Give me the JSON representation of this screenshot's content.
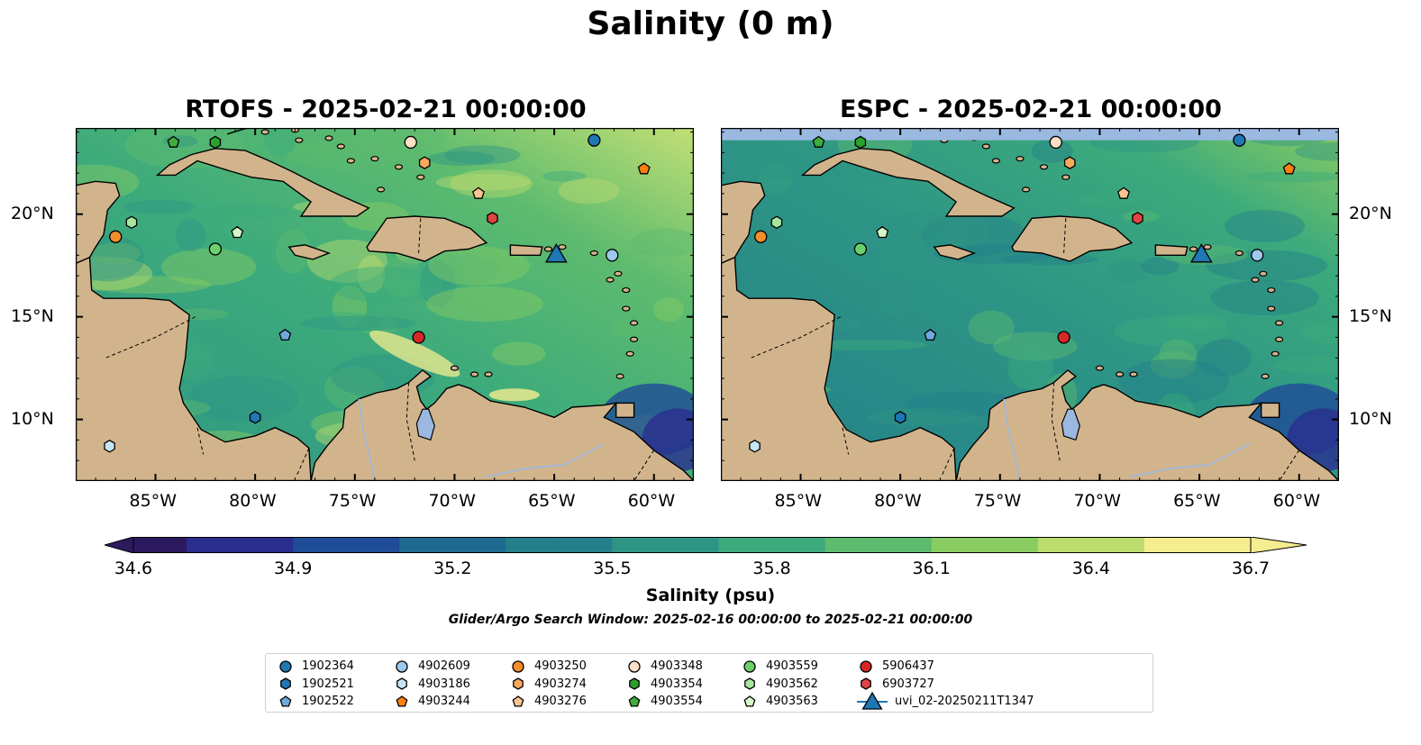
{
  "title": "Salinity (0 m)",
  "panels": [
    {
      "title": "RTOFS - 2025-02-21 00:00:00"
    },
    {
      "title": "ESPC - 2025-02-21 00:00:00"
    }
  ],
  "map": {
    "lon_range": [
      -89,
      -58
    ],
    "lat_range": [
      7,
      24.2
    ],
    "lon_ticks": [
      {
        "value": -85,
        "label": "85°W"
      },
      {
        "value": -80,
        "label": "80°W"
      },
      {
        "value": -75,
        "label": "75°W"
      },
      {
        "value": -70,
        "label": "70°W"
      },
      {
        "value": -65,
        "label": "65°W"
      },
      {
        "value": -60,
        "label": "60°W"
      }
    ],
    "lat_ticks": [
      {
        "value": 20,
        "label": "20°N"
      },
      {
        "value": 15,
        "label": "15°N"
      },
      {
        "value": 10,
        "label": "10°N"
      }
    ],
    "land_color": "#d2b48c",
    "land_features": [
      "Cuba",
      "Hispaniola",
      "Jamaica",
      "Puerto Rico",
      "Central America",
      "South America",
      "Yucatan",
      "Lake Maracaibo"
    ]
  },
  "colorbar": {
    "ticks": [
      "34.6",
      "34.9",
      "35.2",
      "35.5",
      "35.8",
      "36.1",
      "36.4",
      "36.7"
    ],
    "min": 34.6,
    "max": 36.7,
    "label": "Salinity (psu)",
    "colors": [
      "#2b1a5e",
      "#2a2e8f",
      "#1f4c96",
      "#1f6a8f",
      "#237f8a",
      "#2e9585",
      "#3caa7c",
      "#5dbb6e",
      "#88cc62",
      "#bcdc6e",
      "#f5ed8f"
    ]
  },
  "search_window": "Glider/Argo Search Window: 2025-02-16 00:00:00 to 2025-02-21 00:00:00",
  "legend": [
    {
      "id": "1902364",
      "marker": "circle",
      "color": "#1f77b4"
    },
    {
      "id": "1902521",
      "marker": "hexagon",
      "color": "#1f77b4"
    },
    {
      "id": "1902522",
      "marker": "pentagon",
      "color": "#6fa8dc"
    },
    {
      "id": "4902609",
      "marker": "circle",
      "color": "#9ec9ea"
    },
    {
      "id": "4903186",
      "marker": "hexagon",
      "color": "#c6e6f5"
    },
    {
      "id": "4903244",
      "marker": "pentagon",
      "color": "#ff7f0e"
    },
    {
      "id": "4903250",
      "marker": "circle",
      "color": "#f28e2b"
    },
    {
      "id": "4903274",
      "marker": "hexagon",
      "color": "#f7a95c"
    },
    {
      "id": "4903276",
      "marker": "pentagon",
      "color": "#fbc58f"
    },
    {
      "id": "4903348",
      "marker": "circle",
      "color": "#fde0c8"
    },
    {
      "id": "4903354",
      "marker": "hexagon",
      "color": "#2ca02c"
    },
    {
      "id": "4903554",
      "marker": "pentagon",
      "color": "#3fae3f"
    },
    {
      "id": "4903559",
      "marker": "circle",
      "color": "#6bcf6b"
    },
    {
      "id": "4903562",
      "marker": "hexagon",
      "color": "#a8e6a0"
    },
    {
      "id": "4903563",
      "marker": "pentagon",
      "color": "#d6f5c8"
    },
    {
      "id": "5906437",
      "marker": "circle",
      "color": "#d62728"
    },
    {
      "id": "6903727",
      "marker": "hexagon",
      "color": "#e04444"
    },
    {
      "id": "uvi_02-20250211T1347",
      "marker": "triangle",
      "color": "#1f77b4"
    }
  ],
  "observations": [
    {
      "id": "1902364",
      "lon": -63.0,
      "lat": 23.6
    },
    {
      "id": "1902521",
      "lon": -80.0,
      "lat": 10.1
    },
    {
      "id": "1902522",
      "lon": -78.5,
      "lat": 14.1
    },
    {
      "id": "4902609",
      "lon": -62.1,
      "lat": 18.0
    },
    {
      "id": "4903186",
      "lon": -87.3,
      "lat": 8.7
    },
    {
      "id": "4903244",
      "lon": -60.5,
      "lat": 22.2
    },
    {
      "id": "4903250",
      "lon": -87.0,
      "lat": 18.9
    },
    {
      "id": "4903274",
      "lon": -71.5,
      "lat": 22.5
    },
    {
      "id": "4903276",
      "lon": -68.8,
      "lat": 21.0
    },
    {
      "id": "4903348",
      "lon": -72.2,
      "lat": 23.5
    },
    {
      "id": "4903354",
      "lon": -82.0,
      "lat": 23.5
    },
    {
      "id": "4903554",
      "lon": -84.1,
      "lat": 23.5
    },
    {
      "id": "4903559",
      "lon": -82.0,
      "lat": 18.3
    },
    {
      "id": "4903562",
      "lon": -86.2,
      "lat": 19.6
    },
    {
      "id": "4903563",
      "lon": -80.9,
      "lat": 19.1
    },
    {
      "id": "5906437",
      "lon": -71.8,
      "lat": 14.0
    },
    {
      "id": "6903727",
      "lon": -68.1,
      "lat": 19.8
    },
    {
      "id": "uvi_02-20250211T1347",
      "lon": -64.9,
      "lat": 18.1
    }
  ]
}
